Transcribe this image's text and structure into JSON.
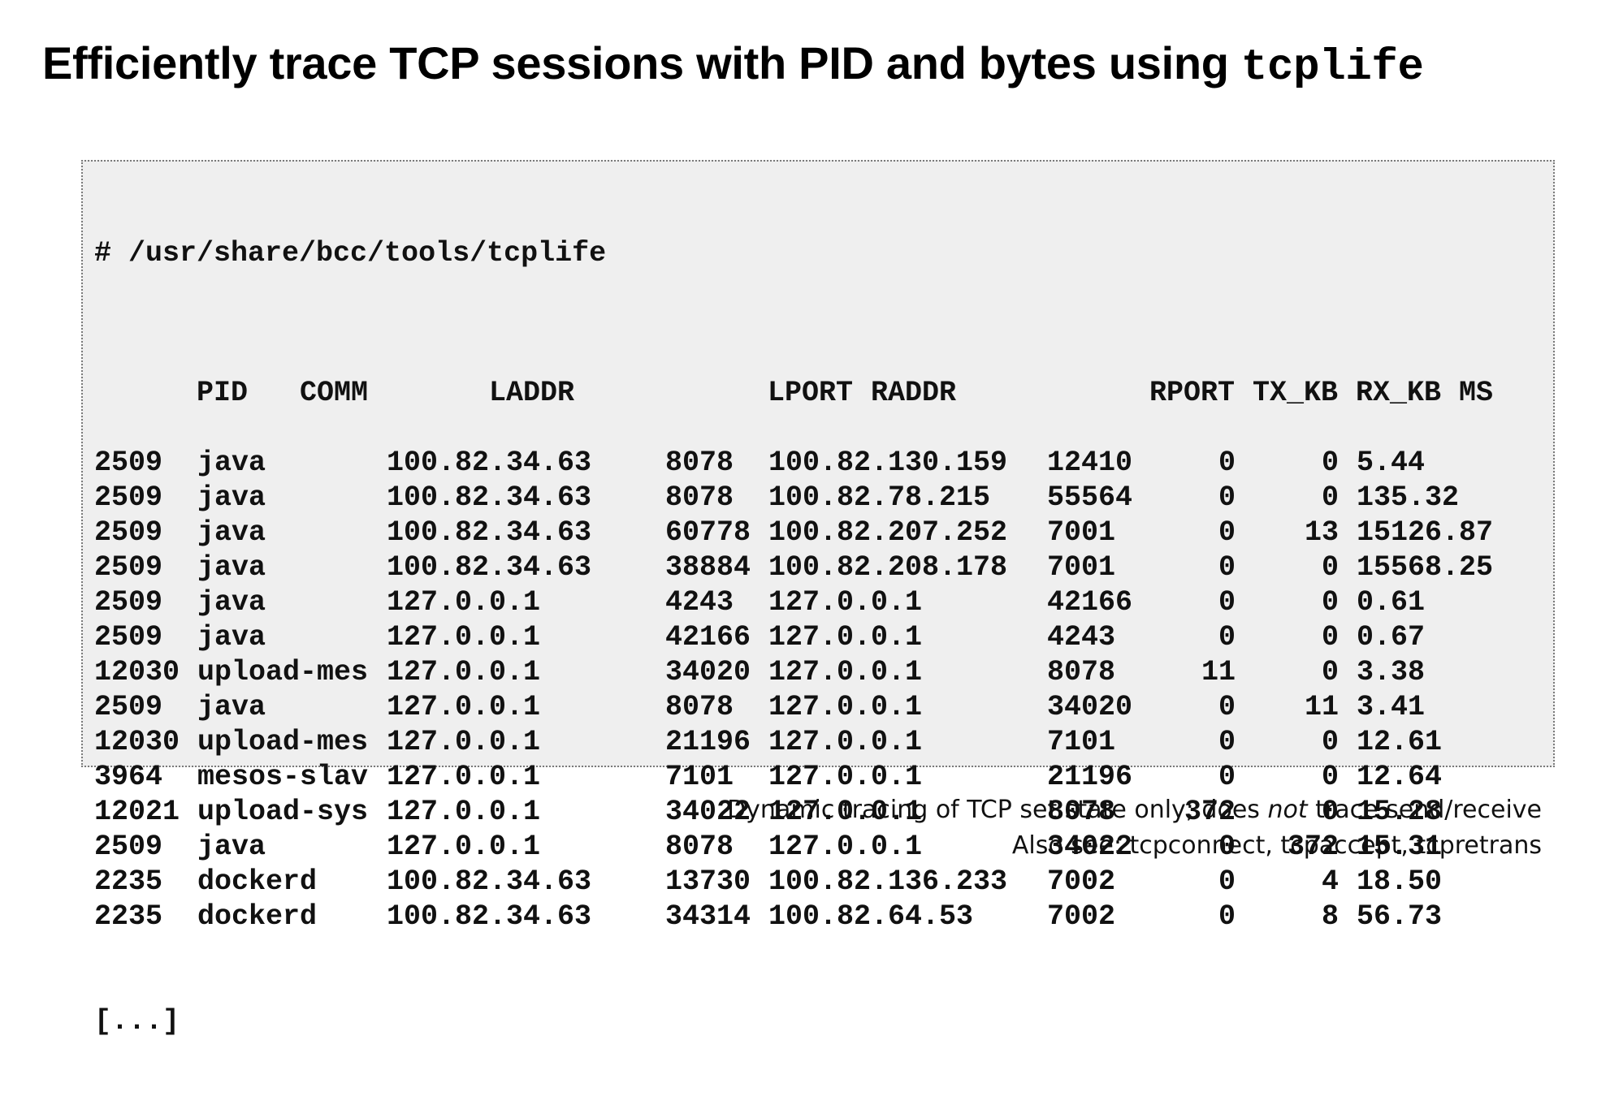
{
  "title": {
    "text": "Efficiently trace TCP sessions with PID and bytes using ",
    "code": "tcplife"
  },
  "terminal": {
    "command": "# /usr/share/bcc/tools/tcplife",
    "columns": [
      "PID",
      "COMM",
      "LADDR",
      "LPORT",
      "RADDR",
      "RPORT",
      "TX_KB",
      "RX_KB",
      "MS"
    ],
    "rows": [
      [
        "2509",
        "java",
        "100.82.34.63",
        "8078",
        "100.82.130.159",
        "12410",
        "0",
        "0",
        "5.44"
      ],
      [
        "2509",
        "java",
        "100.82.34.63",
        "8078",
        "100.82.78.215",
        "55564",
        "0",
        "0",
        "135.32"
      ],
      [
        "2509",
        "java",
        "100.82.34.63",
        "60778",
        "100.82.207.252",
        "7001",
        "0",
        "13",
        "15126.87"
      ],
      [
        "2509",
        "java",
        "100.82.34.63",
        "38884",
        "100.82.208.178",
        "7001",
        "0",
        "0",
        "15568.25"
      ],
      [
        "2509",
        "java",
        "127.0.0.1",
        "4243",
        "127.0.0.1",
        "42166",
        "0",
        "0",
        "0.61"
      ],
      [
        "2509",
        "java",
        "127.0.0.1",
        "42166",
        "127.0.0.1",
        "4243",
        "0",
        "0",
        "0.67"
      ],
      [
        "12030",
        "upload-mes",
        "127.0.0.1",
        "34020",
        "127.0.0.1",
        "8078",
        "11",
        "0",
        "3.38"
      ],
      [
        "2509",
        "java",
        "127.0.0.1",
        "8078",
        "127.0.0.1",
        "34020",
        "0",
        "11",
        "3.41"
      ],
      [
        "12030",
        "upload-mes",
        "127.0.0.1",
        "21196",
        "127.0.0.1",
        "7101",
        "0",
        "0",
        "12.61"
      ],
      [
        "3964",
        "mesos-slav",
        "127.0.0.1",
        "7101",
        "127.0.0.1",
        "21196",
        "0",
        "0",
        "12.64"
      ],
      [
        "12021",
        "upload-sys",
        "127.0.0.1",
        "34022",
        "127.0.0.1",
        "8078",
        "372",
        "0",
        "15.28"
      ],
      [
        "2509",
        "java",
        "127.0.0.1",
        "8078",
        "127.0.0.1",
        "34022",
        "0",
        "372",
        "15.31"
      ],
      [
        "2235",
        "dockerd",
        "100.82.34.63",
        "13730",
        "100.82.136.233",
        "7002",
        "0",
        "4",
        "18.50"
      ],
      [
        "2235",
        "dockerd",
        "100.82.34.63",
        "34314",
        "100.82.64.53",
        "7002",
        "0",
        "8",
        "56.73"
      ]
    ],
    "ellipsis": "[...]"
  },
  "footnote": {
    "line1_before": "Dynamic tracing of TCP set state only; does ",
    "line1_emph": "not",
    "line1_after": " trace send/receive",
    "line2": "Also see: tcpconnect, tcpaccept, tcpretrans"
  }
}
